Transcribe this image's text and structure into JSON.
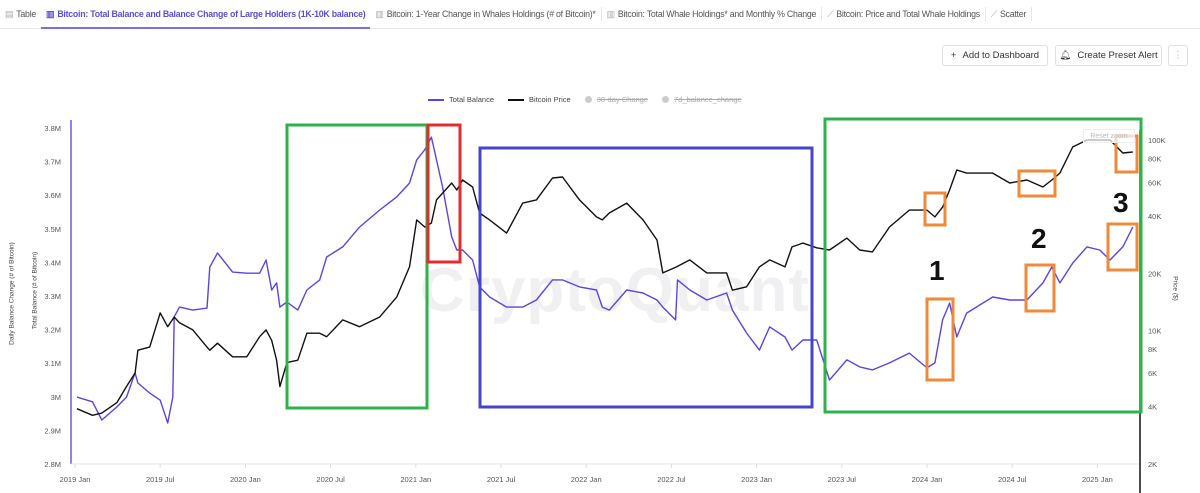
{
  "tabs": [
    {
      "label": "Table",
      "icon": "table-icon",
      "active": false
    },
    {
      "label": "Bitcoin: Total Balance and Balance Change of Large Holders (1K-10K balance)",
      "icon": "bar-chart-icon",
      "active": true
    },
    {
      "label": "Bitcoin: 1-Year Change in Whales Holdings (# of Bitcoin)*",
      "icon": "bar-chart-icon",
      "active": false
    },
    {
      "label": "Bitcoin: Total Whale Holdings* and Monthly % Change",
      "icon": "bar-chart-icon",
      "active": false
    },
    {
      "label": "Bitcoin: Price and Total Whale Holdings",
      "icon": "line-chart-icon",
      "active": false
    },
    {
      "label": "Scatter",
      "icon": "line-chart-icon",
      "active": false
    }
  ],
  "toolbar": {
    "add_dashboard": "Add to Dashboard",
    "preset_alert": "Create Preset Alert",
    "more": "⋮"
  },
  "reset_zoom": "Reset zoom",
  "watermark": "CryptoQuant",
  "colors": {
    "total_balance": "#5a45e0",
    "price": "#111111",
    "accent": "#5b4fd6"
  },
  "annotations": {
    "labels": [
      "1",
      "2",
      "3"
    ],
    "box_colors": {
      "green": "#2db34a",
      "red": "#e52b2b",
      "blue": "#4444cc",
      "orange": "#f08a3a"
    }
  },
  "chart_data": {
    "type": "line",
    "legend": [
      {
        "name": "Total Balance",
        "visible": true
      },
      {
        "name": "Bitcoin Price",
        "visible": true
      },
      {
        "name": "30-day Change",
        "visible": false
      },
      {
        "name": "7d_balance_change",
        "visible": false
      }
    ],
    "legend_position": "top",
    "grid": false,
    "ylabel_left": [
      "Daily Balance Change (# of Bitcoin)",
      "Total Balance (# of Bitcoin)"
    ],
    "ylabel_right": "Price ($)",
    "x_ticks": [
      "2019 Jan",
      "2019 Jul",
      "2020 Jan",
      "2020 Jul",
      "2021 Jan",
      "2021 Jul",
      "2022 Jan",
      "2022 Jul",
      "2023 Jan",
      "2023 Jul",
      "2024 Jan",
      "2024 Jul",
      "2025 Jan"
    ],
    "y_left_ticks": [
      "2.8M",
      "2.9M",
      "3M",
      "3.1M",
      "3.2M",
      "3.3M",
      "3.4M",
      "3.5M",
      "3.6M",
      "3.7M",
      "3.8M"
    ],
    "y_left_range": [
      2800000,
      3800000
    ],
    "y_right_ticks": [
      "2K",
      "4K",
      "6K",
      "8K",
      "10K",
      "20K",
      "40K",
      "60K",
      "80K",
      "100K"
    ],
    "y_right_scale": "log",
    "y_right_range": [
      2000,
      110000
    ],
    "series": [
      {
        "name": "Total Balance",
        "axis": "left",
        "points": [
          [
            "2019-01-05",
            2999000
          ],
          [
            "2019-02-08",
            2985000
          ],
          [
            "2019-02-28",
            2931000
          ],
          [
            "2019-03-30",
            2970000
          ],
          [
            "2019-04-20",
            2999000
          ],
          [
            "2019-05-08",
            3071000
          ],
          [
            "2019-05-14",
            3041000
          ],
          [
            "2019-06-09",
            3011000
          ],
          [
            "2019-07-01",
            2990000
          ],
          [
            "2019-07-17",
            2922000
          ],
          [
            "2019-07-28",
            2999000
          ],
          [
            "2019-07-31",
            3238000
          ],
          [
            "2019-08-12",
            3267000
          ],
          [
            "2019-09-10",
            3258000
          ],
          [
            "2019-10-10",
            3264000
          ],
          [
            "2019-10-16",
            3386000
          ],
          [
            "2019-11-02",
            3428000
          ],
          [
            "2019-12-04",
            3371000
          ],
          [
            "2020-01-04",
            3368000
          ],
          [
            "2020-02-01",
            3368000
          ],
          [
            "2020-02-15",
            3407000
          ],
          [
            "2020-02-27",
            3318000
          ],
          [
            "2020-03-07",
            3339000
          ],
          [
            "2020-03-14",
            3267000
          ],
          [
            "2020-03-29",
            3282000
          ],
          [
            "2020-04-22",
            3258000
          ],
          [
            "2020-05-11",
            3318000
          ],
          [
            "2020-06-08",
            3348000
          ],
          [
            "2020-06-23",
            3416000
          ],
          [
            "2020-07-27",
            3446000
          ],
          [
            "2020-09-02",
            3505000
          ],
          [
            "2020-10-15",
            3556000
          ],
          [
            "2020-11-21",
            3595000
          ],
          [
            "2020-12-18",
            3636000
          ],
          [
            "2021-01-03",
            3705000
          ],
          [
            "2021-01-20",
            3735000
          ],
          [
            "2021-02-04",
            3773000
          ],
          [
            "2021-02-15",
            3705000
          ],
          [
            "2021-02-28",
            3624000
          ],
          [
            "2021-03-17",
            3476000
          ],
          [
            "2021-03-28",
            3437000
          ],
          [
            "2021-04-10",
            3437000
          ],
          [
            "2021-05-01",
            3407000
          ],
          [
            "2021-05-16",
            3327000
          ],
          [
            "2021-06-07",
            3297000
          ],
          [
            "2021-07-13",
            3267000
          ],
          [
            "2021-08-17",
            3267000
          ],
          [
            "2021-09-16",
            3288000
          ],
          [
            "2021-10-20",
            3348000
          ],
          [
            "2021-11-11",
            3348000
          ],
          [
            "2021-12-17",
            3327000
          ],
          [
            "2022-01-23",
            3318000
          ],
          [
            "2022-02-05",
            3267000
          ],
          [
            "2022-02-20",
            3258000
          ],
          [
            "2022-03-27",
            3318000
          ],
          [
            "2022-05-01",
            3309000
          ],
          [
            "2022-05-31",
            3288000
          ],
          [
            "2022-06-13",
            3267000
          ],
          [
            "2022-07-10",
            3229000
          ],
          [
            "2022-07-14",
            3348000
          ],
          [
            "2022-08-10",
            3318000
          ],
          [
            "2022-09-16",
            3288000
          ],
          [
            "2022-10-28",
            3309000
          ],
          [
            "2022-11-10",
            3258000
          ],
          [
            "2022-12-10",
            3190000
          ],
          [
            "2023-01-07",
            3139000
          ],
          [
            "2023-01-29",
            3208000
          ],
          [
            "2023-03-01",
            3178000
          ],
          [
            "2023-03-16",
            3139000
          ],
          [
            "2023-04-09",
            3169000
          ],
          [
            "2023-05-08",
            3169000
          ],
          [
            "2023-06-05",
            3050000
          ],
          [
            "2023-07-12",
            3110000
          ],
          [
            "2023-08-09",
            3089000
          ],
          [
            "2023-09-06",
            3080000
          ],
          [
            "2023-10-12",
            3101000
          ],
          [
            "2023-11-24",
            3130000
          ],
          [
            "2024-01-01",
            3086000
          ],
          [
            "2024-01-18",
            3101000
          ],
          [
            "2024-02-04",
            3229000
          ],
          [
            "2024-02-19",
            3279000
          ],
          [
            "2024-03-04",
            3178000
          ],
          [
            "2024-03-25",
            3249000
          ],
          [
            "2024-05-20",
            3297000
          ],
          [
            "2024-06-26",
            3288000
          ],
          [
            "2024-08-02",
            3288000
          ],
          [
            "2024-09-06",
            3339000
          ],
          [
            "2024-09-25",
            3386000
          ],
          [
            "2024-10-12",
            3339000
          ],
          [
            "2024-11-09",
            3398000
          ],
          [
            "2024-12-09",
            3446000
          ],
          [
            "2025-01-06",
            3437000
          ],
          [
            "2025-01-28",
            3407000
          ],
          [
            "2025-02-25",
            3446000
          ],
          [
            "2025-03-16",
            3505000
          ]
        ]
      },
      {
        "name": "Bitcoin Price",
        "axis": "right",
        "points": [
          [
            "2019-01-05",
            3900
          ],
          [
            "2019-02-08",
            3600
          ],
          [
            "2019-02-28",
            3700
          ],
          [
            "2019-03-30",
            4200
          ],
          [
            "2019-04-20",
            5100
          ],
          [
            "2019-05-08",
            6000
          ],
          [
            "2019-05-14",
            7900
          ],
          [
            "2019-06-09",
            8200
          ],
          [
            "2019-07-01",
            12400
          ],
          [
            "2019-07-17",
            10500
          ],
          [
            "2019-07-31",
            11800
          ],
          [
            "2019-08-12",
            11000
          ],
          [
            "2019-09-10",
            10100
          ],
          [
            "2019-10-10",
            8200
          ],
          [
            "2019-10-16",
            7900
          ],
          [
            "2019-11-02",
            8600
          ],
          [
            "2019-12-04",
            7300
          ],
          [
            "2020-01-04",
            7300
          ],
          [
            "2020-02-01",
            9300
          ],
          [
            "2020-02-15",
            10100
          ],
          [
            "2020-02-27",
            8900
          ],
          [
            "2020-03-07",
            7000
          ],
          [
            "2020-03-14",
            5100
          ],
          [
            "2020-03-29",
            6800
          ],
          [
            "2020-04-22",
            7000
          ],
          [
            "2020-05-11",
            9700
          ],
          [
            "2020-06-08",
            9700
          ],
          [
            "2020-06-23",
            9300
          ],
          [
            "2020-07-27",
            11400
          ],
          [
            "2020-09-02",
            10500
          ],
          [
            "2020-10-15",
            11800
          ],
          [
            "2020-11-21",
            15000
          ],
          [
            "2020-12-18",
            21600
          ],
          [
            "2021-01-03",
            38100
          ],
          [
            "2021-01-20",
            35000
          ],
          [
            "2021-02-04",
            36700
          ],
          [
            "2021-02-15",
            48500
          ],
          [
            "2021-02-28",
            52700
          ],
          [
            "2021-03-17",
            59500
          ],
          [
            "2021-03-28",
            54700
          ],
          [
            "2021-04-10",
            61700
          ],
          [
            "2021-05-01",
            56700
          ],
          [
            "2021-05-16",
            41400
          ],
          [
            "2021-06-07",
            38100
          ],
          [
            "2021-07-13",
            32500
          ],
          [
            "2021-08-17",
            46700
          ],
          [
            "2021-09-16",
            48500
          ],
          [
            "2021-10-20",
            63200
          ],
          [
            "2021-11-11",
            64000
          ],
          [
            "2021-12-17",
            48500
          ],
          [
            "2022-01-23",
            39500
          ],
          [
            "2022-02-05",
            38100
          ],
          [
            "2022-02-20",
            41400
          ],
          [
            "2022-03-27",
            46700
          ],
          [
            "2022-05-01",
            38100
          ],
          [
            "2022-05-31",
            29900
          ],
          [
            "2022-06-13",
            20100
          ],
          [
            "2022-07-12",
            21600
          ],
          [
            "2022-08-10",
            23500
          ],
          [
            "2022-09-16",
            20100
          ],
          [
            "2022-10-28",
            20100
          ],
          [
            "2022-11-10",
            16300
          ],
          [
            "2022-12-10",
            17000
          ],
          [
            "2023-01-07",
            21600
          ],
          [
            "2023-01-29",
            23500
          ],
          [
            "2023-03-01",
            21600
          ],
          [
            "2023-03-16",
            27500
          ],
          [
            "2023-04-09",
            28800
          ],
          [
            "2023-05-08",
            27200
          ],
          [
            "2023-06-05",
            26500
          ],
          [
            "2023-07-12",
            30600
          ],
          [
            "2023-08-09",
            26500
          ],
          [
            "2023-09-06",
            25900
          ],
          [
            "2023-10-12",
            35000
          ],
          [
            "2023-11-24",
            42900
          ],
          [
            "2024-01-01",
            42900
          ],
          [
            "2024-01-18",
            39500
          ],
          [
            "2024-02-04",
            44500
          ],
          [
            "2024-02-19",
            54700
          ],
          [
            "2024-03-04",
            69600
          ],
          [
            "2024-03-25",
            67100
          ],
          [
            "2024-05-20",
            67100
          ],
          [
            "2024-06-26",
            59500
          ],
          [
            "2024-08-02",
            61700
          ],
          [
            "2024-09-06",
            56700
          ],
          [
            "2024-09-25",
            61700
          ],
          [
            "2024-10-12",
            67100
          ],
          [
            "2024-11-09",
            91900
          ],
          [
            "2024-12-09",
            100000
          ],
          [
            "2025-01-06",
            100000
          ],
          [
            "2025-01-28",
            100000
          ],
          [
            "2025-02-25",
            85500
          ],
          [
            "2025-03-16",
            86500
          ]
        ]
      }
    ]
  }
}
